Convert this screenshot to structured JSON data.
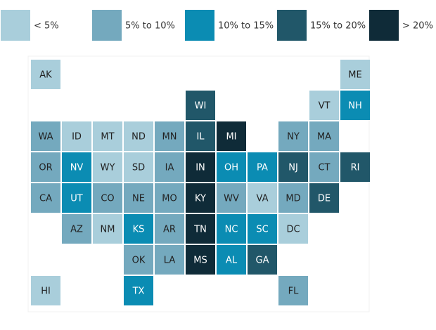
{
  "legend": [
    {
      "label": "< 5%",
      "color": "#a9cedb"
    },
    {
      "label": "5% to 10%",
      "color": "#74a9be"
    },
    {
      "label": "10% to 15%",
      "color": "#0b8cb3"
    },
    {
      "label": "15% to 20%",
      "color": "#215769"
    },
    {
      "label": "> 20%",
      "color": "#0f2b38"
    }
  ],
  "grid": [
    [
      {
        "label": "AK",
        "bin": 0
      },
      null,
      null,
      null,
      null,
      null,
      null,
      null,
      null,
      null,
      {
        "label": "ME",
        "bin": 0
      }
    ],
    [
      null,
      null,
      null,
      null,
      null,
      {
        "label": "WI",
        "bin": 3
      },
      null,
      null,
      null,
      {
        "label": "VT",
        "bin": 0
      },
      {
        "label": "NH",
        "bin": 2
      }
    ],
    [
      {
        "label": "WA",
        "bin": 1
      },
      {
        "label": "ID",
        "bin": 0
      },
      {
        "label": "MT",
        "bin": 0
      },
      {
        "label": "ND",
        "bin": 0
      },
      {
        "label": "MN",
        "bin": 1
      },
      {
        "label": "IL",
        "bin": 3
      },
      {
        "label": "MI",
        "bin": 4
      },
      null,
      {
        "label": "NY",
        "bin": 1
      },
      {
        "label": "MA",
        "bin": 1
      },
      null
    ],
    [
      {
        "label": "OR",
        "bin": 1
      },
      {
        "label": "NV",
        "bin": 2
      },
      {
        "label": "WY",
        "bin": 0
      },
      {
        "label": "SD",
        "bin": 0
      },
      {
        "label": "IA",
        "bin": 1
      },
      {
        "label": "IN",
        "bin": 4
      },
      {
        "label": "OH",
        "bin": 2
      },
      {
        "label": "PA",
        "bin": 2
      },
      {
        "label": "NJ",
        "bin": 3
      },
      {
        "label": "CT",
        "bin": 1
      },
      {
        "label": "RI",
        "bin": 3
      }
    ],
    [
      {
        "label": "CA",
        "bin": 1
      },
      {
        "label": "UT",
        "bin": 2
      },
      {
        "label": "CO",
        "bin": 1
      },
      {
        "label": "NE",
        "bin": 1
      },
      {
        "label": "MO",
        "bin": 1
      },
      {
        "label": "KY",
        "bin": 4
      },
      {
        "label": "WV",
        "bin": 1
      },
      {
        "label": "VA",
        "bin": 0
      },
      {
        "label": "MD",
        "bin": 1
      },
      {
        "label": "DE",
        "bin": 3
      },
      null
    ],
    [
      null,
      {
        "label": "AZ",
        "bin": 1
      },
      {
        "label": "NM",
        "bin": 0
      },
      {
        "label": "KS",
        "bin": 2
      },
      {
        "label": "AR",
        "bin": 1
      },
      {
        "label": "TN",
        "bin": 4
      },
      {
        "label": "NC",
        "bin": 2
      },
      {
        "label": "SC",
        "bin": 2
      },
      {
        "label": "DC",
        "bin": 0
      },
      null,
      null
    ],
    [
      null,
      null,
      null,
      {
        "label": "OK",
        "bin": 1
      },
      {
        "label": "LA",
        "bin": 1
      },
      {
        "label": "MS",
        "bin": 4
      },
      {
        "label": "AL",
        "bin": 2
      },
      {
        "label": "GA",
        "bin": 3
      },
      null,
      null,
      null
    ],
    [
      {
        "label": "HI",
        "bin": 0
      },
      null,
      null,
      {
        "label": "TX",
        "bin": 2
      },
      null,
      null,
      null,
      null,
      {
        "label": "FL",
        "bin": 1
      },
      null,
      null
    ]
  ]
}
